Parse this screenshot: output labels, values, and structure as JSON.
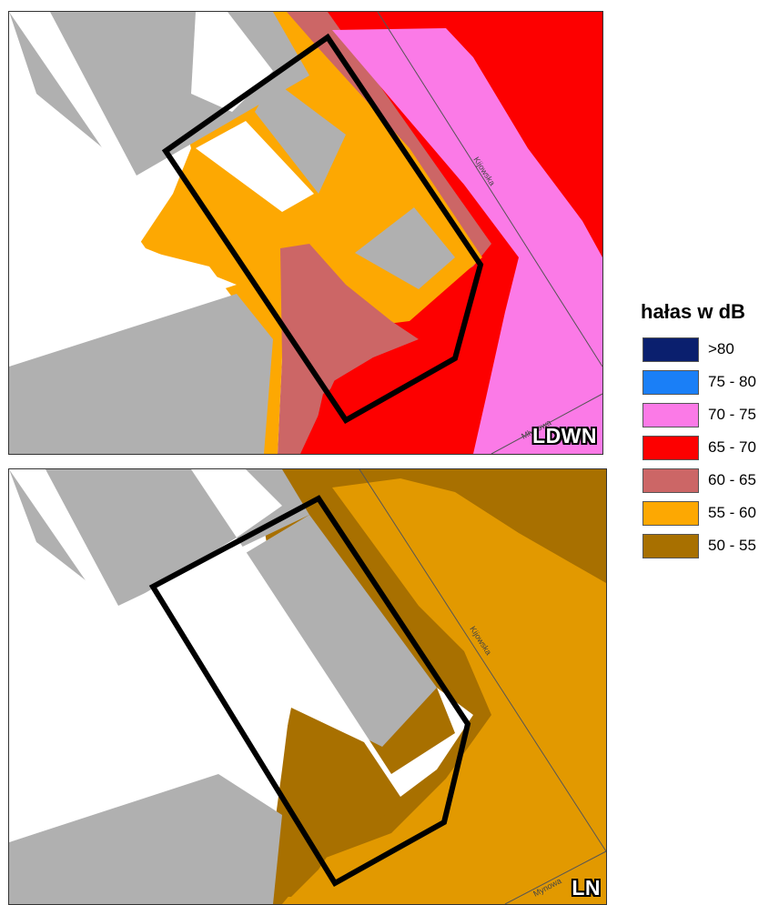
{
  "maps": {
    "top": {
      "title": "LDWN",
      "streets": [
        "Kijowska",
        "Młynowa"
      ]
    },
    "bottom": {
      "title": "LN",
      "streets": [
        "Kijowska",
        "Mynowa"
      ]
    }
  },
  "legend": {
    "title": "hałas w dB",
    "items": [
      {
        "label": ">80",
        "color": "#0a1f6e"
      },
      {
        "label": "75 - 80",
        "color": "#1a7ff7"
      },
      {
        "label": "70 - 75",
        "color": "#fb7ae7"
      },
      {
        "label": "65 - 70",
        "color": "#fd0000"
      },
      {
        "label": "60 - 65",
        "color": "#cc6666"
      },
      {
        "label": "55 - 60",
        "color": "#fda802"
      },
      {
        "label": "50 - 55",
        "color": "#a87000"
      }
    ]
  },
  "colors": {
    "building": "#b0b0b0",
    "background": "#ffffff",
    "boundary": "#000000",
    "street_line": "#555555"
  }
}
